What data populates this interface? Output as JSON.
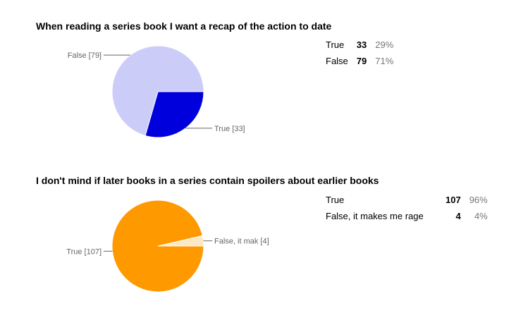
{
  "chart_data": [
    {
      "type": "pie",
      "title": "When reading a series book I want a recap of the action to date",
      "slices": [
        {
          "label": "True",
          "value": 33,
          "percent": "29%",
          "chart_label": "True [33]",
          "color": "#0000dd"
        },
        {
          "label": "False",
          "value": 79,
          "percent": "71%",
          "chart_label": "False [79]",
          "color": "#ccccf8"
        }
      ]
    },
    {
      "type": "pie",
      "title": "I don't mind if later books in a series contain spoilers about earlier books",
      "slices": [
        {
          "label": "True",
          "value": 107,
          "percent": "96%",
          "chart_label": "True [107]",
          "color": "#ff9900"
        },
        {
          "label": "False, it makes me rage",
          "value": 4,
          "percent": "4%",
          "chart_label": "False, it mak [4]",
          "color": "#fde8c6"
        }
      ]
    }
  ]
}
